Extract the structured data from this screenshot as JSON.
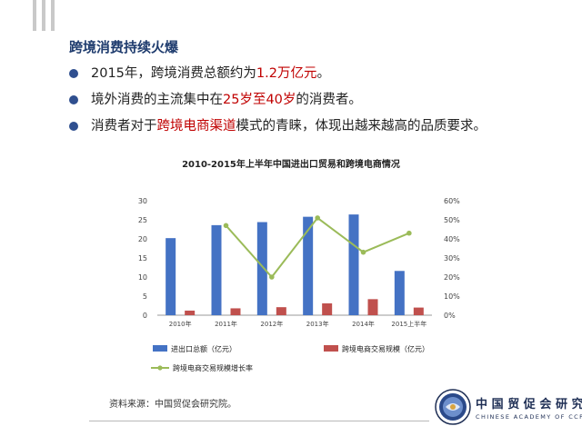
{
  "slide": {
    "title": "跨境消费持续火爆",
    "bullets": [
      {
        "parts": [
          {
            "text": "2015年，跨境消费总额约为",
            "hl": false
          },
          {
            "text": "1.2万亿元",
            "hl": true
          },
          {
            "text": "。",
            "hl": false
          }
        ]
      },
      {
        "parts": [
          {
            "text": "境外消费的主流集中在",
            "hl": false
          },
          {
            "text": "25岁至40岁",
            "hl": true
          },
          {
            "text": "的消费者。",
            "hl": false
          }
        ]
      },
      {
        "parts": [
          {
            "text": "消费者对于",
            "hl": false
          },
          {
            "text": "跨境电商渠道",
            "hl": true
          },
          {
            "text": "模式的青睐，体现出越来越高的品质要求。",
            "hl": false
          }
        ]
      }
    ],
    "source": "资料来源：中国贸促会研究院。"
  },
  "logo": {
    "name_cn": "中国贸促会研究院",
    "name_en": "CHINESE ACADEMY OF CCPIT",
    "seal_text": "CAOCCPIT"
  },
  "colors": {
    "title": "#1f3c6e",
    "highlight": "#c00000",
    "bullet": "#2f4f8f",
    "bar_trade": "#4472c4",
    "bar_ecommerce": "#c0504d",
    "line_growth": "#9bbb59"
  },
  "chart_data": {
    "type": "bar",
    "title": "2010-2015年上半年中国进出口贸易和跨境电商情况",
    "categories": [
      "2010年",
      "2011年",
      "2012年",
      "2013年",
      "2014年",
      "2015上半年"
    ],
    "series": [
      {
        "name": "进出口总额（亿元）",
        "type": "bar",
        "axis": "left",
        "values": [
          20.2,
          23.6,
          24.4,
          25.8,
          26.4,
          11.6
        ]
      },
      {
        "name": "跨境电商交易规模（亿元）",
        "type": "bar",
        "axis": "left",
        "values": [
          1.2,
          1.8,
          2.1,
          3.1,
          4.2,
          2.0
        ]
      },
      {
        "name": "跨境电商交易规模增长率",
        "type": "line",
        "axis": "right",
        "values": [
          null,
          0.47,
          0.2,
          0.51,
          0.33,
          0.43
        ]
      }
    ],
    "y_left": {
      "min": 0,
      "max": 30,
      "ticks": [
        0,
        5,
        10,
        15,
        20,
        25,
        30
      ]
    },
    "y_right": {
      "min": 0,
      "max": 0.6,
      "ticks": [
        "0%",
        "10%",
        "20%",
        "30%",
        "40%",
        "50%",
        "60%"
      ]
    },
    "grid": false,
    "legend": "bottom"
  }
}
